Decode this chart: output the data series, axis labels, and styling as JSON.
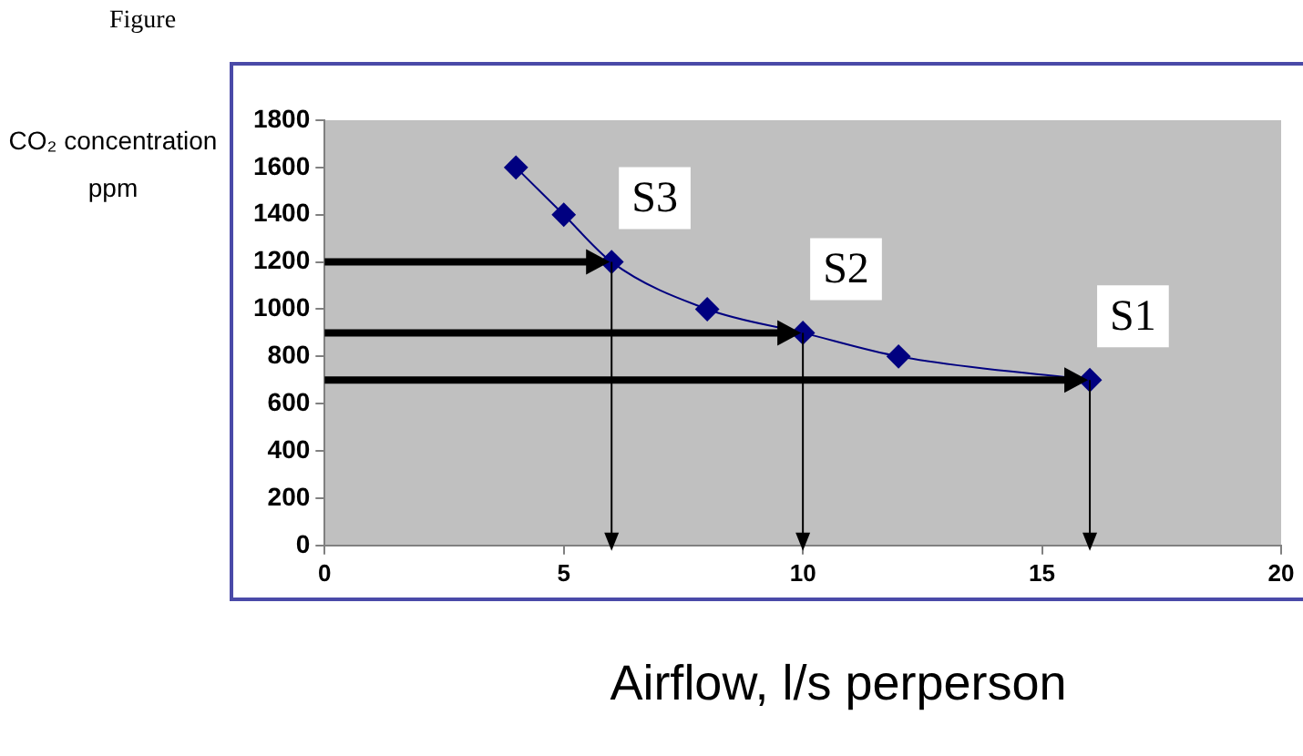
{
  "chart_data": {
    "type": "line",
    "title": "Figure",
    "xlabel": "Airflow,  l/s perperson",
    "ylabel": "CO₂ concentration ppm",
    "x": [
      4,
      5,
      6,
      8,
      10,
      12,
      16
    ],
    "series": [
      {
        "color": "#000080",
        "values": [
          1600,
          1400,
          1200,
          1000,
          900,
          800,
          700
        ]
      }
    ],
    "xlim": [
      0,
      20
    ],
    "xticks": [
      0,
      5,
      10,
      15,
      20
    ],
    "ylim": [
      0,
      1800
    ],
    "yticks": [
      0,
      200,
      400,
      600,
      800,
      1000,
      1200,
      1400,
      1600,
      1800
    ],
    "marker": "diamond",
    "line_style": "solid",
    "legend": false,
    "annotations": [
      {
        "text": "S3",
        "x": 6,
        "y": 1200
      },
      {
        "text": "S2",
        "x": 10,
        "y": 900
      },
      {
        "text": "S1",
        "x": 16,
        "y": 700
      }
    ]
  }
}
